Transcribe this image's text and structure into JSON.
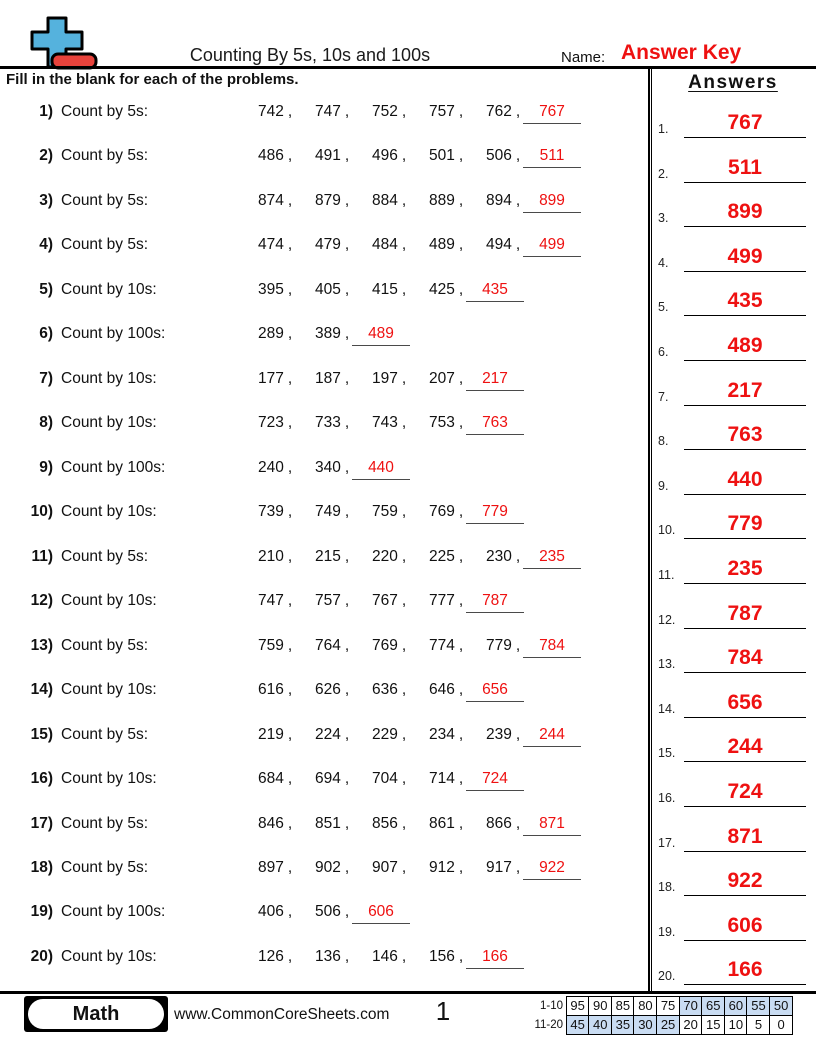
{
  "header": {
    "title": "Counting By 5s, 10s and 100s",
    "name_label": "Name:",
    "name_value": "Answer Key",
    "instruction": "Fill in the blank for each of the problems."
  },
  "glyphs": {
    "comma": ","
  },
  "problems": [
    {
      "label": "1)",
      "instruction": "Count by 5s:",
      "given": [
        "742",
        "747",
        "752",
        "757",
        "762"
      ],
      "answer": "767"
    },
    {
      "label": "2)",
      "instruction": "Count by 5s:",
      "given": [
        "486",
        "491",
        "496",
        "501",
        "506"
      ],
      "answer": "511"
    },
    {
      "label": "3)",
      "instruction": "Count by 5s:",
      "given": [
        "874",
        "879",
        "884",
        "889",
        "894"
      ],
      "answer": "899"
    },
    {
      "label": "4)",
      "instruction": "Count by 5s:",
      "given": [
        "474",
        "479",
        "484",
        "489",
        "494"
      ],
      "answer": "499"
    },
    {
      "label": "5)",
      "instruction": "Count by 10s:",
      "given": [
        "395",
        "405",
        "415",
        "425"
      ],
      "answer": "435"
    },
    {
      "label": "6)",
      "instruction": "Count by 100s:",
      "given": [
        "289",
        "389"
      ],
      "answer": "489"
    },
    {
      "label": "7)",
      "instruction": "Count by 10s:",
      "given": [
        "177",
        "187",
        "197",
        "207"
      ],
      "answer": "217"
    },
    {
      "label": "8)",
      "instruction": "Count by 10s:",
      "given": [
        "723",
        "733",
        "743",
        "753"
      ],
      "answer": "763"
    },
    {
      "label": "9)",
      "instruction": "Count by 100s:",
      "given": [
        "240",
        "340"
      ],
      "answer": "440"
    },
    {
      "label": "10)",
      "instruction": "Count by 10s:",
      "given": [
        "739",
        "749",
        "759",
        "769"
      ],
      "answer": "779"
    },
    {
      "label": "11)",
      "instruction": "Count by 5s:",
      "given": [
        "210",
        "215",
        "220",
        "225",
        "230"
      ],
      "answer": "235"
    },
    {
      "label": "12)",
      "instruction": "Count by 10s:",
      "given": [
        "747",
        "757",
        "767",
        "777"
      ],
      "answer": "787"
    },
    {
      "label": "13)",
      "instruction": "Count by 5s:",
      "given": [
        "759",
        "764",
        "769",
        "774",
        "779"
      ],
      "answer": "784"
    },
    {
      "label": "14)",
      "instruction": "Count by 10s:",
      "given": [
        "616",
        "626",
        "636",
        "646"
      ],
      "answer": "656"
    },
    {
      "label": "15)",
      "instruction": "Count by 5s:",
      "given": [
        "219",
        "224",
        "229",
        "234",
        "239"
      ],
      "answer": "244"
    },
    {
      "label": "16)",
      "instruction": "Count by 10s:",
      "given": [
        "684",
        "694",
        "704",
        "714"
      ],
      "answer": "724"
    },
    {
      "label": "17)",
      "instruction": "Count by 5s:",
      "given": [
        "846",
        "851",
        "856",
        "861",
        "866"
      ],
      "answer": "871"
    },
    {
      "label": "18)",
      "instruction": "Count by 5s:",
      "given": [
        "897",
        "902",
        "907",
        "912",
        "917"
      ],
      "answer": "922"
    },
    {
      "label": "19)",
      "instruction": "Count by 100s:",
      "given": [
        "406",
        "506"
      ],
      "answer": "606"
    },
    {
      "label": "20)",
      "instruction": "Count by 10s:",
      "given": [
        "126",
        "136",
        "146",
        "156"
      ],
      "answer": "166"
    }
  ],
  "answers_panel": {
    "title": "Answers",
    "items": [
      {
        "label": "1.",
        "value": "767"
      },
      {
        "label": "2.",
        "value": "511"
      },
      {
        "label": "3.",
        "value": "899"
      },
      {
        "label": "4.",
        "value": "499"
      },
      {
        "label": "5.",
        "value": "435"
      },
      {
        "label": "6.",
        "value": "489"
      },
      {
        "label": "7.",
        "value": "217"
      },
      {
        "label": "8.",
        "value": "763"
      },
      {
        "label": "9.",
        "value": "440"
      },
      {
        "label": "10.",
        "value": "779"
      },
      {
        "label": "11.",
        "value": "235"
      },
      {
        "label": "12.",
        "value": "787"
      },
      {
        "label": "13.",
        "value": "784"
      },
      {
        "label": "14.",
        "value": "656"
      },
      {
        "label": "15.",
        "value": "244"
      },
      {
        "label": "16.",
        "value": "724"
      },
      {
        "label": "17.",
        "value": "871"
      },
      {
        "label": "18.",
        "value": "922"
      },
      {
        "label": "19.",
        "value": "606"
      },
      {
        "label": "20.",
        "value": "166"
      }
    ]
  },
  "footer": {
    "subject": "Math",
    "website": "www.CommonCoreSheets.com",
    "page_number": "1",
    "grade_table": {
      "rows": [
        {
          "label": "1-10",
          "cells": [
            {
              "value": "95",
              "shaded": false
            },
            {
              "value": "90",
              "shaded": false
            },
            {
              "value": "85",
              "shaded": false
            },
            {
              "value": "80",
              "shaded": false
            },
            {
              "value": "75",
              "shaded": false
            },
            {
              "value": "70",
              "shaded": true
            },
            {
              "value": "65",
              "shaded": true
            },
            {
              "value": "60",
              "shaded": true
            },
            {
              "value": "55",
              "shaded": true
            },
            {
              "value": "50",
              "shaded": true
            }
          ]
        },
        {
          "label": "11-20",
          "cells": [
            {
              "value": "45",
              "shaded": true
            },
            {
              "value": "40",
              "shaded": true
            },
            {
              "value": "35",
              "shaded": true
            },
            {
              "value": "30",
              "shaded": true
            },
            {
              "value": "25",
              "shaded": true
            },
            {
              "value": "20",
              "shaded": false
            },
            {
              "value": "15",
              "shaded": false
            },
            {
              "value": "10",
              "shaded": false
            },
            {
              "value": "5",
              "shaded": false
            },
            {
              "value": "0",
              "shaded": false
            }
          ]
        }
      ]
    }
  },
  "colors": {
    "answer_red": "#ee1111",
    "shade_blue": "#c9dcf2",
    "logo_blue": "#55b2dd",
    "logo_red": "#e8433c"
  }
}
